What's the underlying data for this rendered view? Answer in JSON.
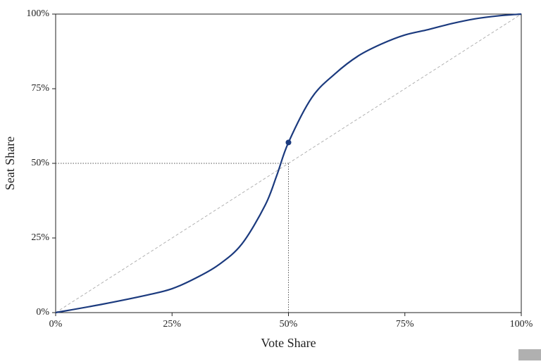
{
  "chart_data": {
    "type": "line",
    "xlabel": "Vote Share",
    "ylabel": "Seat Share",
    "xlim": [
      0,
      100
    ],
    "ylim": [
      0,
      100
    ],
    "xticks": [
      {
        "value": 0,
        "label": "0%"
      },
      {
        "value": 25,
        "label": "25%"
      },
      {
        "value": 50,
        "label": "50%"
      },
      {
        "value": 75,
        "label": "75%"
      },
      {
        "value": 100,
        "label": "100%"
      }
    ],
    "yticks": [
      {
        "value": 0,
        "label": "0%"
      },
      {
        "value": 25,
        "label": "25%"
      },
      {
        "value": 50,
        "label": "50%"
      },
      {
        "value": 75,
        "label": "75%"
      },
      {
        "value": 100,
        "label": "100%"
      }
    ],
    "series": [
      {
        "color": "#1b3a7e",
        "dash": false,
        "x": [
          0,
          10,
          20,
          25,
          30,
          35,
          40,
          45,
          47.5,
          50,
          55,
          60,
          65,
          70,
          75,
          80,
          85,
          90,
          95,
          100
        ],
        "values": [
          0,
          2.8,
          6,
          8,
          11.5,
          16,
          23,
          36,
          46,
          57,
          72,
          80,
          86,
          90,
          93,
          94.8,
          96.8,
          98.4,
          99.4,
          100
        ]
      },
      {
        "color": "#aaaaaa",
        "dash": true,
        "x": [
          0,
          100
        ],
        "values": [
          0,
          100
        ]
      }
    ],
    "reference": {
      "x": 50,
      "y": 50
    },
    "highlight": {
      "x": 50,
      "y": 57,
      "color": "#1b3a7e"
    }
  }
}
